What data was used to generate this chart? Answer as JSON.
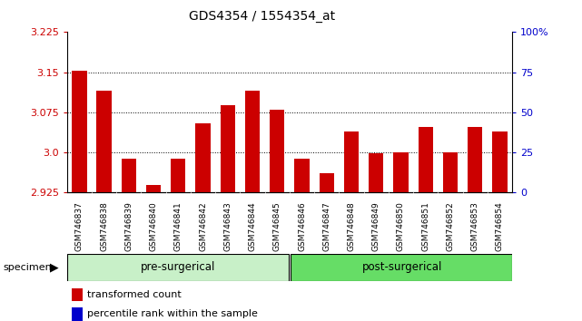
{
  "title": "GDS4354 / 1554354_at",
  "samples": [
    "GSM746837",
    "GSM746838",
    "GSM746839",
    "GSM746840",
    "GSM746841",
    "GSM746842",
    "GSM746843",
    "GSM746844",
    "GSM746845",
    "GSM746846",
    "GSM746847",
    "GSM746848",
    "GSM746849",
    "GSM746850",
    "GSM746851",
    "GSM746852",
    "GSM746853",
    "GSM746854"
  ],
  "transformed_count": [
    3.153,
    3.115,
    2.988,
    2.94,
    2.988,
    3.055,
    3.088,
    3.115,
    3.08,
    2.988,
    2.962,
    3.04,
    2.998,
    3.0,
    3.048,
    3.0,
    3.048,
    3.04
  ],
  "percentile_rank": [
    0,
    0,
    0,
    0,
    0,
    0,
    0,
    0,
    0,
    0,
    0,
    0,
    0,
    0,
    0,
    0,
    0,
    0
  ],
  "pre_surgical_count": 9,
  "post_surgical_count": 9,
  "ylim_left": [
    2.925,
    3.225
  ],
  "ylim_right": [
    0,
    100
  ],
  "yticks_left": [
    2.925,
    3.0,
    3.075,
    3.15,
    3.225
  ],
  "yticks_right": [
    0,
    25,
    50,
    75,
    100
  ],
  "ytick_labels_right": [
    "0",
    "25",
    "50",
    "75",
    "100%"
  ],
  "bar_color": "#cc0000",
  "percentile_color": "#0000cc",
  "pre_color": "#c8f0c8",
  "post_color": "#66dd66",
  "tick_bg_color": "#d4d4d4",
  "background_color": "#ffffff",
  "specimen_label": "specimen",
  "legend_tc": "transformed count",
  "legend_pr": "percentile rank within the sample",
  "pre_label": "pre-surgerical",
  "post_label": "post-surgerical"
}
